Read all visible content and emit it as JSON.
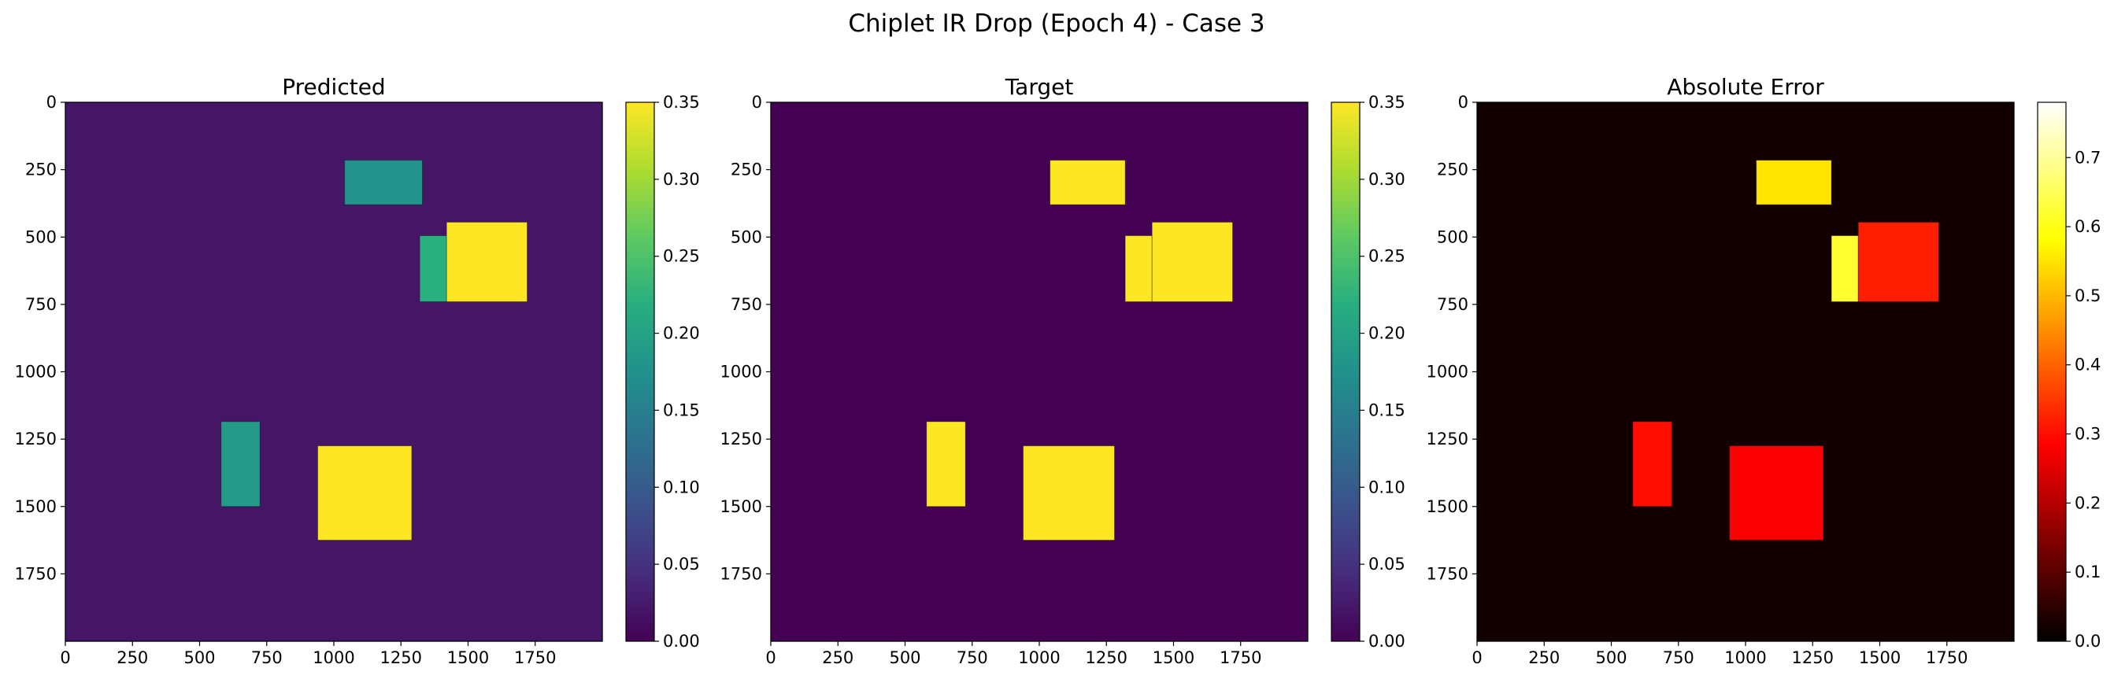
{
  "figure": {
    "suptitle": "Chiplet IR Drop (Epoch 4) - Case 3"
  },
  "chart_data": [
    {
      "type": "heatmap",
      "title": "Predicted",
      "colormap": "viridis",
      "xlim": [
        0,
        2000
      ],
      "ylim": [
        2000,
        0
      ],
      "xticks": [
        0,
        250,
        500,
        750,
        1000,
        1250,
        1500,
        1750
      ],
      "yticks": [
        0,
        250,
        500,
        750,
        1000,
        1250,
        1500,
        1750
      ],
      "colorbar": {
        "min": 0.0,
        "max": 0.35,
        "ticks": [
          "0.00",
          "0.05",
          "0.10",
          "0.15",
          "0.20",
          "0.25",
          "0.30",
          "0.35"
        ]
      },
      "background_value": 0.02,
      "regions": [
        {
          "x0": 1040,
          "x1": 1330,
          "y0": 215,
          "y1": 380,
          "value": 0.18
        },
        {
          "x0": 1320,
          "x1": 1420,
          "y0": 495,
          "y1": 740,
          "value": 0.22
        },
        {
          "x0": 1420,
          "x1": 1720,
          "y0": 445,
          "y1": 740,
          "value": 0.35
        },
        {
          "x0": 580,
          "x1": 725,
          "y0": 1185,
          "y1": 1500,
          "value": 0.19
        },
        {
          "x0": 940,
          "x1": 1290,
          "y0": 1275,
          "y1": 1625,
          "value": 0.35
        }
      ]
    },
    {
      "type": "heatmap",
      "title": "Target",
      "colormap": "viridis",
      "xlim": [
        0,
        2000
      ],
      "ylim": [
        2000,
        0
      ],
      "xticks": [
        0,
        250,
        500,
        750,
        1000,
        1250,
        1500,
        1750
      ],
      "yticks": [
        0,
        250,
        500,
        750,
        1000,
        1250,
        1500,
        1750
      ],
      "colorbar": {
        "min": 0.0,
        "max": 0.35,
        "ticks": [
          "0.00",
          "0.05",
          "0.10",
          "0.15",
          "0.20",
          "0.25",
          "0.30",
          "0.35"
        ]
      },
      "background_value": 0.0,
      "regions": [
        {
          "x0": 1040,
          "x1": 1320,
          "y0": 215,
          "y1": 380,
          "value": 0.35
        },
        {
          "x0": 1320,
          "x1": 1420,
          "y0": 495,
          "y1": 740,
          "value": 0.35
        },
        {
          "x0": 1420,
          "x1": 1720,
          "y0": 445,
          "y1": 740,
          "value": 0.35
        },
        {
          "x0": 580,
          "x1": 725,
          "y0": 1185,
          "y1": 1500,
          "value": 0.35
        },
        {
          "x0": 940,
          "x1": 1280,
          "y0": 1275,
          "y1": 1625,
          "value": 0.35
        }
      ]
    },
    {
      "type": "heatmap",
      "title": "Absolute Error",
      "colormap": "hot",
      "xlim": [
        0,
        2000
      ],
      "ylim": [
        2000,
        0
      ],
      "xticks": [
        0,
        250,
        500,
        750,
        1000,
        1250,
        1500,
        1750
      ],
      "yticks": [
        0,
        250,
        500,
        750,
        1000,
        1250,
        1500,
        1750
      ],
      "colorbar": {
        "min": 0.0,
        "max": 0.78,
        "ticks": [
          "0.0",
          "0.1",
          "0.2",
          "0.3",
          "0.4",
          "0.5",
          "0.6",
          "0.7"
        ]
      },
      "background_value": 0.02,
      "regions": [
        {
          "x0": 1040,
          "x1": 1320,
          "y0": 215,
          "y1": 380,
          "value": 0.55
        },
        {
          "x0": 1320,
          "x1": 1420,
          "y0": 495,
          "y1": 740,
          "value": 0.62
        },
        {
          "x0": 1420,
          "x1": 1720,
          "y0": 445,
          "y1": 740,
          "value": 0.32
        },
        {
          "x0": 580,
          "x1": 725,
          "y0": 1185,
          "y1": 1500,
          "value": 0.3
        },
        {
          "x0": 940,
          "x1": 1290,
          "y0": 1275,
          "y1": 1625,
          "value": 0.28
        }
      ]
    }
  ]
}
